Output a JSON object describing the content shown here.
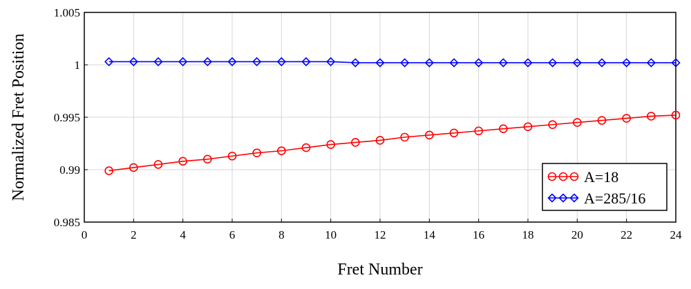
{
  "chart_data": {
    "type": "line",
    "title": "",
    "xlabel": "Fret Number",
    "ylabel": "Normalized Fret Position",
    "xlim": [
      0,
      24
    ],
    "ylim": [
      0.985,
      1.005
    ],
    "x_ticks": [
      0,
      2,
      4,
      6,
      8,
      10,
      12,
      14,
      16,
      18,
      20,
      22,
      24
    ],
    "x_tick_labels": [
      "0",
      "2",
      "4",
      "6",
      "8",
      "10",
      "12",
      "14",
      "16",
      "18",
      "20",
      "22",
      "24"
    ],
    "y_ticks": [
      0.985,
      0.99,
      0.995,
      1,
      1.005
    ],
    "y_tick_labels": [
      "0.985",
      "0.99",
      "0.995",
      "1",
      "1.005"
    ],
    "grid": true,
    "legend_position": "bottom-right",
    "x": [
      1,
      2,
      3,
      4,
      5,
      6,
      7,
      8,
      9,
      10,
      11,
      12,
      13,
      14,
      15,
      16,
      17,
      18,
      19,
      20,
      21,
      22,
      23,
      24
    ],
    "series": [
      {
        "name": "A=18",
        "color": "#ff0000",
        "marker": "circle",
        "values": [
          0.9899,
          0.9902,
          0.9905,
          0.9908,
          0.991,
          0.9913,
          0.9916,
          0.9918,
          0.9921,
          0.9924,
          0.9926,
          0.9928,
          0.9931,
          0.9933,
          0.9935,
          0.9937,
          0.9939,
          0.9941,
          0.9943,
          0.9945,
          0.9947,
          0.9949,
          0.9951,
          0.9952
        ]
      },
      {
        "name": "A=285/16",
        "color": "#0000ff",
        "marker": "diamond",
        "values": [
          1.0003,
          1.0003,
          1.0003,
          1.0003,
          1.0003,
          1.0003,
          1.0003,
          1.0003,
          1.0003,
          1.0003,
          1.0002,
          1.0002,
          1.0002,
          1.0002,
          1.0002,
          1.0002,
          1.0002,
          1.0002,
          1.0002,
          1.0002,
          1.0002,
          1.0002,
          1.0002,
          1.0002
        ]
      }
    ]
  }
}
